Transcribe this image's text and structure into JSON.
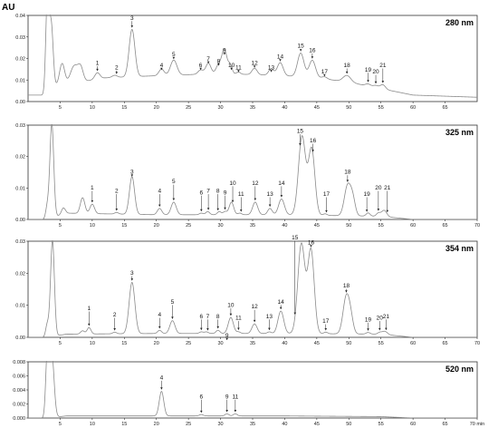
{
  "y_unit": "AU",
  "x_unit_label": "min",
  "colors": {
    "trace": "#8a8a8a",
    "frame": "#333333",
    "arrow": "#222222"
  },
  "chart_data": [
    {
      "type": "line",
      "title": "280 nm",
      "x_range": [
        0,
        70
      ],
      "ylim": [
        0,
        0.04
      ],
      "x_ticks": [
        5,
        10,
        15,
        20,
        25,
        30,
        35,
        40,
        45,
        50,
        55,
        60,
        65
      ],
      "x_tick_labels": [
        "5",
        "10",
        "15",
        "20",
        "25",
        "30",
        "35",
        "40",
        "45",
        "50",
        "55",
        "60",
        "65"
      ],
      "y_ticks": [
        0.0,
        0.01,
        0.02,
        0.03,
        0.04
      ],
      "y_tick_labels": [
        "0.00",
        "0.01",
        "0.02",
        "0.03",
        "0.04"
      ],
      "baseline": [
        [
          0,
          0.003
        ],
        [
          2.5,
          0.003
        ],
        [
          4,
          0.007
        ],
        [
          12,
          0.011
        ],
        [
          20,
          0.012
        ],
        [
          30,
          0.013
        ],
        [
          40,
          0.012
        ],
        [
          45,
          0.011
        ],
        [
          50,
          0.009
        ],
        [
          55,
          0.006
        ],
        [
          60,
          0.003
        ],
        [
          70,
          0.002
        ]
      ],
      "peaks": [
        {
          "t": 3.0,
          "h": 0.042,
          "w": 0.25
        },
        {
          "t": 3.6,
          "h": 0.03,
          "w": 0.3
        },
        {
          "t": 5.3,
          "h": 0.01,
          "w": 0.4
        },
        {
          "t": 7.2,
          "h": 0.008,
          "w": 0.6
        },
        {
          "t": 8.2,
          "h": 0.006,
          "w": 0.4
        },
        {
          "t": 10.8,
          "h": 0.003,
          "w": 0.4
        },
        {
          "t": 13.5,
          "h": 0.001,
          "w": 0.4
        },
        {
          "t": 16.2,
          "h": 0.022,
          "w": 0.45
        },
        {
          "t": 20.8,
          "h": 0.003,
          "w": 0.4
        },
        {
          "t": 22.7,
          "h": 0.007,
          "w": 0.5
        },
        {
          "t": 26.9,
          "h": 0.002,
          "w": 0.4
        },
        {
          "t": 28.1,
          "h": 0.005,
          "w": 0.4
        },
        {
          "t": 29.7,
          "h": 0.004,
          "w": 0.4
        },
        {
          "t": 30.6,
          "h": 0.011,
          "w": 0.4
        },
        {
          "t": 31.5,
          "h": 0.004,
          "w": 0.3
        },
        {
          "t": 32.8,
          "h": 0.001,
          "w": 0.3
        },
        {
          "t": 35.3,
          "h": 0.003,
          "w": 0.4
        },
        {
          "t": 37.9,
          "h": 0.003,
          "w": 0.4
        },
        {
          "t": 39.3,
          "h": 0.006,
          "w": 0.45
        },
        {
          "t": 42.5,
          "h": 0.011,
          "w": 0.5
        },
        {
          "t": 44.3,
          "h": 0.008,
          "w": 0.5
        },
        {
          "t": 46.2,
          "h": 0.001,
          "w": 0.4
        },
        {
          "t": 49.7,
          "h": 0.003,
          "w": 0.6
        },
        {
          "t": 53.0,
          "h": 0.001,
          "w": 0.4
        },
        {
          "t": 54.2,
          "h": 0.001,
          "w": 0.4
        },
        {
          "t": 55.3,
          "h": 0.002,
          "w": 0.4
        }
      ],
      "annotations": [
        {
          "label": "1",
          "t": 10.8,
          "y": 0.017
        },
        {
          "label": "2",
          "t": 13.8,
          "y": 0.015
        },
        {
          "label": "3",
          "t": 16.2,
          "y": 0.038
        },
        {
          "label": "4",
          "t": 20.8,
          "y": 0.016
        },
        {
          "label": "5",
          "t": 22.7,
          "y": 0.021
        },
        {
          "label": "6",
          "t": 26.9,
          "y": 0.016
        },
        {
          "label": "7",
          "t": 28.1,
          "y": 0.019
        },
        {
          "label": "8",
          "t": 29.7,
          "y": 0.018
        },
        {
          "label": "9",
          "t": 30.6,
          "y": 0.023
        },
        {
          "label": "10",
          "t": 31.7,
          "y": 0.016
        },
        {
          "label": "11",
          "t": 32.8,
          "y": 0.015
        },
        {
          "label": "12",
          "t": 35.3,
          "y": 0.017
        },
        {
          "label": "13",
          "t": 37.9,
          "y": 0.015
        },
        {
          "label": "14",
          "t": 39.3,
          "y": 0.02
        },
        {
          "label": "15",
          "t": 42.5,
          "y": 0.025
        },
        {
          "label": "16",
          "t": 44.3,
          "y": 0.023
        },
        {
          "label": "17",
          "t": 46.2,
          "y": 0.013
        },
        {
          "label": "18",
          "t": 49.7,
          "y": 0.016
        },
        {
          "label": "19",
          "t": 53.0,
          "y": 0.014
        },
        {
          "label": "20",
          "t": 54.2,
          "y": 0.013
        },
        {
          "label": "21",
          "t": 55.3,
          "y": 0.016
        }
      ]
    },
    {
      "type": "line",
      "title": "325 nm",
      "x_range": [
        0,
        70
      ],
      "ylim": [
        0,
        0.03
      ],
      "x_ticks": [
        5,
        10,
        15,
        20,
        25,
        30,
        35,
        40,
        45,
        50,
        55,
        60,
        65,
        70
      ],
      "x_tick_labels": [
        "5",
        "10",
        "15",
        "20",
        "25",
        "30",
        "35",
        "40",
        "45",
        "50",
        "55",
        "60",
        "65",
        "70"
      ],
      "y_ticks": [
        0.0,
        0.01,
        0.02,
        0.03
      ],
      "y_tick_labels": [
        "0.00",
        "0.01",
        "0.02",
        "0.03"
      ],
      "baseline": [
        [
          0,
          0.0
        ],
        [
          3,
          0.0
        ],
        [
          6,
          0.002
        ],
        [
          20,
          0.0015
        ],
        [
          40,
          0.0015
        ],
        [
          55,
          0.001
        ],
        [
          60,
          0.0
        ],
        [
          70,
          0.0
        ]
      ],
      "peaks": [
        {
          "t": 3.0,
          "h": 0.004,
          "w": 0.25
        },
        {
          "t": 3.7,
          "h": 0.03,
          "w": 0.3
        },
        {
          "t": 5.5,
          "h": 0.002,
          "w": 0.3
        },
        {
          "t": 8.5,
          "h": 0.005,
          "w": 0.35
        },
        {
          "t": 10.0,
          "h": 0.003,
          "w": 0.35
        },
        {
          "t": 13.8,
          "h": 0.0005,
          "w": 0.3
        },
        {
          "t": 16.2,
          "h": 0.012,
          "w": 0.4
        },
        {
          "t": 20.5,
          "h": 0.002,
          "w": 0.35
        },
        {
          "t": 22.7,
          "h": 0.004,
          "w": 0.4
        },
        {
          "t": 27.0,
          "h": 0.0005,
          "w": 0.3
        },
        {
          "t": 28.0,
          "h": 0.001,
          "w": 0.3
        },
        {
          "t": 29.8,
          "h": 0.001,
          "w": 0.3
        },
        {
          "t": 30.7,
          "h": 0.001,
          "w": 0.3
        },
        {
          "t": 31.7,
          "h": 0.004,
          "w": 0.35
        },
        {
          "t": 33.0,
          "h": 0.0005,
          "w": 0.3
        },
        {
          "t": 35.4,
          "h": 0.004,
          "w": 0.4
        },
        {
          "t": 37.7,
          "h": 0.002,
          "w": 0.35
        },
        {
          "t": 39.5,
          "h": 0.005,
          "w": 0.45
        },
        {
          "t": 42.7,
          "h": 0.025,
          "w": 0.55
        },
        {
          "t": 44.2,
          "h": 0.021,
          "w": 0.5
        },
        {
          "t": 46.3,
          "h": 0.0005,
          "w": 0.3
        },
        {
          "t": 49.8,
          "h": 0.0095,
          "w": 0.5
        },
        {
          "t": 50.6,
          "h": 0.005,
          "w": 0.4
        },
        {
          "t": 53.0,
          "h": 0.001,
          "w": 0.3
        },
        {
          "t": 54.6,
          "h": 0.001,
          "w": 0.3
        },
        {
          "t": 55.5,
          "h": 0.002,
          "w": 0.4
        }
      ],
      "annotations": [
        {
          "label": "1",
          "t": 10.0,
          "y": 0.0095
        },
        {
          "label": "2",
          "t": 13.8,
          "y": 0.0085
        },
        {
          "label": "3",
          "t": 16.2,
          "y": 0.0145
        },
        {
          "label": "4",
          "t": 20.5,
          "y": 0.0085
        },
        {
          "label": "5",
          "t": 22.7,
          "y": 0.0115
        },
        {
          "label": "6",
          "t": 27.0,
          "y": 0.008
        },
        {
          "label": "7",
          "t": 28.1,
          "y": 0.0085
        },
        {
          "label": "8",
          "t": 29.6,
          "y": 0.0085
        },
        {
          "label": "9",
          "t": 30.7,
          "y": 0.008
        },
        {
          "label": "10",
          "t": 31.9,
          "y": 0.011
        },
        {
          "label": "11",
          "t": 33.2,
          "y": 0.0075
        },
        {
          "label": "12",
          "t": 35.4,
          "y": 0.011
        },
        {
          "label": "13",
          "t": 37.7,
          "y": 0.0075
        },
        {
          "label": "14",
          "t": 39.5,
          "y": 0.011
        },
        {
          "label": "15",
          "t": 42.4,
          "y": 0.0275
        },
        {
          "label": "16",
          "t": 44.4,
          "y": 0.0245
        },
        {
          "label": "17",
          "t": 46.5,
          "y": 0.0075
        },
        {
          "label": "18",
          "t": 49.8,
          "y": 0.0145
        },
        {
          "label": "19",
          "t": 52.8,
          "y": 0.0075
        },
        {
          "label": "20",
          "t": 54.6,
          "y": 0.0095
        },
        {
          "label": "21",
          "t": 56.0,
          "y": 0.0095
        }
      ]
    },
    {
      "type": "line",
      "title": "354 nm",
      "x_range": [
        0,
        70
      ],
      "ylim": [
        0,
        0.03
      ],
      "x_ticks": [
        5,
        10,
        15,
        20,
        25,
        30,
        35,
        40,
        45,
        50,
        55,
        60,
        65,
        70
      ],
      "x_tick_labels": [
        "5",
        "10",
        "15",
        "20",
        "25",
        "30",
        "35",
        "40",
        "45",
        "50",
        "55",
        "60",
        "65",
        "70"
      ],
      "y_ticks": [
        0.0,
        0.01,
        0.02,
        0.03
      ],
      "y_tick_labels": [
        "0.00",
        "0.01",
        "0.02",
        "0.03"
      ],
      "baseline": [
        [
          0,
          0.0
        ],
        [
          3,
          0.0
        ],
        [
          6,
          0.001
        ],
        [
          20,
          0.0012
        ],
        [
          40,
          0.0012
        ],
        [
          55,
          0.001
        ],
        [
          60,
          0.0
        ],
        [
          70,
          0.0
        ]
      ],
      "peaks": [
        {
          "t": 3.0,
          "h": 0.004,
          "w": 0.25
        },
        {
          "t": 3.8,
          "h": 0.03,
          "w": 0.3
        },
        {
          "t": 8.5,
          "h": 0.001,
          "w": 0.3
        },
        {
          "t": 9.5,
          "h": 0.002,
          "w": 0.3
        },
        {
          "t": 13.5,
          "h": 0.0005,
          "w": 0.3
        },
        {
          "t": 16.2,
          "h": 0.016,
          "w": 0.45
        },
        {
          "t": 20.5,
          "h": 0.001,
          "w": 0.3
        },
        {
          "t": 22.5,
          "h": 0.004,
          "w": 0.4
        },
        {
          "t": 27.0,
          "h": 0.0005,
          "w": 0.3
        },
        {
          "t": 27.8,
          "h": 0.0005,
          "w": 0.3
        },
        {
          "t": 29.6,
          "h": 0.001,
          "w": 0.3
        },
        {
          "t": 31.6,
          "h": 0.005,
          "w": 0.4
        },
        {
          "t": 32.8,
          "h": 0.0005,
          "w": 0.3
        },
        {
          "t": 35.3,
          "h": 0.003,
          "w": 0.4
        },
        {
          "t": 37.6,
          "h": 0.0005,
          "w": 0.3
        },
        {
          "t": 39.4,
          "h": 0.007,
          "w": 0.45
        },
        {
          "t": 42.6,
          "h": 0.028,
          "w": 0.55
        },
        {
          "t": 44.1,
          "h": 0.026,
          "w": 0.5
        },
        {
          "t": 46.4,
          "h": 0.0005,
          "w": 0.3
        },
        {
          "t": 49.6,
          "h": 0.0115,
          "w": 0.5
        },
        {
          "t": 50.3,
          "h": 0.004,
          "w": 0.4
        },
        {
          "t": 53.0,
          "h": 0.0005,
          "w": 0.3
        },
        {
          "t": 54.8,
          "h": 0.0005,
          "w": 0.3
        },
        {
          "t": 55.6,
          "h": 0.001,
          "w": 0.4
        }
      ],
      "annotations": [
        {
          "label": "1",
          "t": 9.5,
          "y": 0.0085
        },
        {
          "label": "2",
          "t": 13.5,
          "y": 0.0065
        },
        {
          "label": "3",
          "t": 16.2,
          "y": 0.0195
        },
        {
          "label": "4",
          "t": 20.5,
          "y": 0.0065
        },
        {
          "label": "5",
          "t": 22.5,
          "y": 0.0105
        },
        {
          "label": "6",
          "t": 27.0,
          "y": 0.006
        },
        {
          "label": "7",
          "t": 28.0,
          "y": 0.006
        },
        {
          "label": "8",
          "t": 29.6,
          "y": 0.006
        },
        {
          "label": "9",
          "t": 31.0,
          "y": 0.0
        },
        {
          "label": "10",
          "t": 31.6,
          "y": 0.0095
        },
        {
          "label": "11",
          "t": 32.8,
          "y": 0.0055
        },
        {
          "label": "12",
          "t": 35.3,
          "y": 0.009
        },
        {
          "label": "13",
          "t": 37.6,
          "y": 0.006
        },
        {
          "label": "14",
          "t": 39.4,
          "y": 0.0105
        },
        {
          "label": "15",
          "t": 41.6,
          "y": 0.0305
        },
        {
          "label": "16",
          "t": 44.1,
          "y": 0.029
        },
        {
          "label": "17",
          "t": 46.4,
          "y": 0.0045
        },
        {
          "label": "18",
          "t": 49.6,
          "y": 0.0155
        },
        {
          "label": "19",
          "t": 53.0,
          "y": 0.005
        },
        {
          "label": "20",
          "t": 54.8,
          "y": 0.0055
        },
        {
          "label": "21",
          "t": 55.8,
          "y": 0.006
        }
      ]
    },
    {
      "type": "line",
      "title": "520 nm",
      "x_range": [
        0,
        70
      ],
      "ylim": [
        0,
        0.008
      ],
      "x_ticks": [
        5,
        10,
        15,
        20,
        25,
        30,
        35,
        40,
        45,
        50,
        55,
        60,
        65,
        70
      ],
      "x_tick_labels": [
        "5",
        "10",
        "15",
        "20",
        "25",
        "30",
        "35",
        "40",
        "45",
        "50",
        "55",
        "60",
        "65",
        "70 min"
      ],
      "y_ticks": [
        0.0,
        0.002,
        0.004,
        0.006,
        0.008
      ],
      "y_tick_labels": [
        "0.000",
        "0.002",
        "0.004",
        "0.006",
        "0.008"
      ],
      "baseline": [
        [
          0,
          0.0
        ],
        [
          3,
          0.0
        ],
        [
          6,
          0.0003
        ],
        [
          40,
          0.0003
        ],
        [
          55,
          0.0002
        ],
        [
          60,
          0.0
        ],
        [
          70,
          0.0
        ]
      ],
      "peaks": [
        {
          "t": 3.0,
          "h": 0.009,
          "w": 0.25
        },
        {
          "t": 3.7,
          "h": 0.009,
          "w": 0.35
        },
        {
          "t": 20.8,
          "h": 0.0035,
          "w": 0.35
        },
        {
          "t": 27.0,
          "h": 0.0002,
          "w": 0.3
        },
        {
          "t": 31.0,
          "h": 0.0003,
          "w": 0.3
        },
        {
          "t": 32.3,
          "h": 0.0003,
          "w": 0.3
        }
      ],
      "annotations": [
        {
          "label": "4",
          "t": 20.8,
          "y": 0.0055
        },
        {
          "label": "6",
          "t": 27.0,
          "y": 0.0028
        },
        {
          "label": "9",
          "t": 31.0,
          "y": 0.0028
        },
        {
          "label": "11",
          "t": 32.3,
          "y": 0.0028
        }
      ]
    }
  ]
}
